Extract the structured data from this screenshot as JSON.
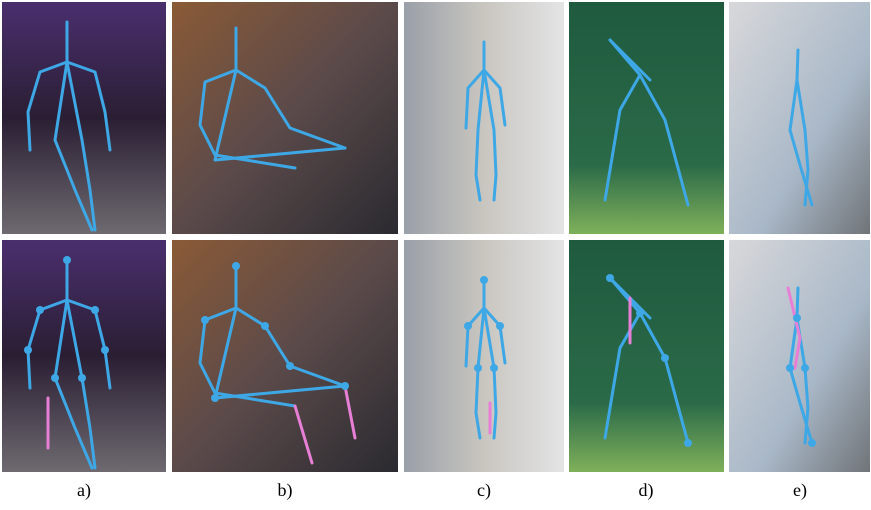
{
  "captions": [
    "a)",
    "b)",
    "c)",
    "d)",
    "e)"
  ]
}
